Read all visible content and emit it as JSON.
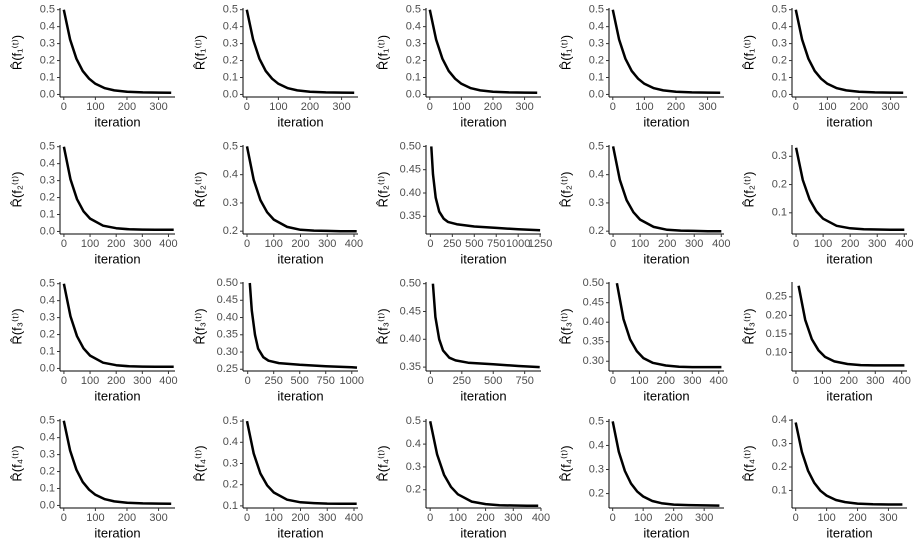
{
  "chart_data": [
    {
      "type": "line",
      "ylabel": "R̂(f₁⁽ᵗ⁾)",
      "xlabel": "iteration",
      "color": "#000000",
      "x": [
        0,
        20,
        40,
        60,
        80,
        100,
        130,
        160,
        200,
        250,
        300,
        340
      ],
      "values": [
        0.5,
        0.324,
        0.211,
        0.139,
        0.093,
        0.063,
        0.037,
        0.024,
        0.016,
        0.012,
        0.011,
        0.01
      ],
      "xlim": [
        -12,
        352
      ],
      "ylim": [
        -0.015,
        0.51
      ],
      "xticks": [
        0,
        100,
        200,
        300
      ],
      "yticks": [
        {
          "value": 0,
          "label": "0.0"
        },
        0.1,
        0.2,
        0.3,
        0.4,
        0.5
      ]
    },
    {
      "type": "line",
      "ylabel": "R̂(f₁⁽ᵗ⁾)",
      "xlabel": "iteration",
      "color": "#000000",
      "x": [
        0,
        20,
        40,
        60,
        80,
        100,
        130,
        160,
        200,
        250,
        300,
        340
      ],
      "values": [
        0.5,
        0.324,
        0.211,
        0.139,
        0.093,
        0.063,
        0.037,
        0.024,
        0.016,
        0.012,
        0.011,
        0.01
      ],
      "xlim": [
        -12,
        352
      ],
      "ylim": [
        -0.015,
        0.51
      ],
      "xticks": [
        0,
        100,
        200,
        300
      ],
      "yticks": [
        {
          "value": 0,
          "label": "0.0"
        },
        0.1,
        0.2,
        0.3,
        0.4,
        0.5
      ]
    },
    {
      "type": "line",
      "ylabel": "R̂(f₁⁽ᵗ⁾)",
      "xlabel": "iteration",
      "color": "#000000",
      "x": [
        0,
        20,
        40,
        60,
        80,
        100,
        130,
        160,
        200,
        250,
        300,
        340
      ],
      "values": [
        0.5,
        0.324,
        0.211,
        0.139,
        0.093,
        0.063,
        0.037,
        0.024,
        0.016,
        0.012,
        0.011,
        0.01
      ],
      "xlim": [
        -12,
        352
      ],
      "ylim": [
        -0.015,
        0.51
      ],
      "xticks": [
        0,
        100,
        200,
        300
      ],
      "yticks": [
        {
          "value": 0,
          "label": "0.0"
        },
        0.1,
        0.2,
        0.3,
        0.4,
        0.5
      ]
    },
    {
      "type": "line",
      "ylabel": "R̂(f₁⁽ᵗ⁾)",
      "xlabel": "iteration",
      "color": "#000000",
      "x": [
        0,
        20,
        40,
        60,
        80,
        100,
        130,
        160,
        200,
        250,
        300,
        340
      ],
      "values": [
        0.5,
        0.324,
        0.211,
        0.139,
        0.093,
        0.063,
        0.037,
        0.024,
        0.016,
        0.012,
        0.011,
        0.01
      ],
      "xlim": [
        -12,
        352
      ],
      "ylim": [
        -0.015,
        0.51
      ],
      "xticks": [
        0,
        100,
        200,
        300
      ],
      "yticks": [
        {
          "value": 0,
          "label": "0.0"
        },
        0.1,
        0.2,
        0.3,
        0.4,
        0.5
      ]
    },
    {
      "type": "line",
      "ylabel": "R̂(f₁⁽ᵗ⁾)",
      "xlabel": "iteration",
      "color": "#000000",
      "x": [
        0,
        20,
        40,
        60,
        80,
        100,
        130,
        160,
        200,
        250,
        300,
        340
      ],
      "values": [
        0.5,
        0.324,
        0.211,
        0.139,
        0.093,
        0.063,
        0.037,
        0.024,
        0.016,
        0.012,
        0.011,
        0.01
      ],
      "xlim": [
        -12,
        352
      ],
      "ylim": [
        -0.015,
        0.51
      ],
      "xticks": [
        0,
        100,
        200,
        300
      ],
      "yticks": [
        {
          "value": 0,
          "label": "0.0"
        },
        0.1,
        0.2,
        0.3,
        0.4,
        0.5
      ]
    },
    {
      "type": "line",
      "ylabel": "R̂(f₂⁽ᵗ⁾)",
      "xlabel": "iteration",
      "color": "#000000",
      "x": [
        0,
        25,
        50,
        75,
        100,
        150,
        200,
        250,
        300,
        350,
        420
      ],
      "values": [
        0.5,
        0.307,
        0.19,
        0.119,
        0.076,
        0.034,
        0.019,
        0.013,
        0.011,
        0.01,
        0.01
      ],
      "xlim": [
        -15,
        425
      ],
      "ylim": [
        -0.015,
        0.51
      ],
      "xticks": [
        0,
        100,
        200,
        300,
        400
      ],
      "yticks": [
        {
          "value": 0,
          "label": "0.0"
        },
        0.1,
        0.2,
        0.3,
        0.4,
        0.5
      ]
    },
    {
      "type": "line",
      "ylabel": "R̂(f₂⁽ᵗ⁾)",
      "xlabel": "iteration",
      "color": "#000000",
      "x": [
        0,
        25,
        50,
        75,
        100,
        150,
        200,
        250,
        300,
        350,
        410
      ],
      "values": [
        0.5,
        0.382,
        0.31,
        0.267,
        0.241,
        0.215,
        0.205,
        0.202,
        0.201,
        0.2,
        0.2
      ],
      "xlim": [
        -15,
        415
      ],
      "ylim": [
        0.19,
        0.505
      ],
      "xticks": [
        0,
        100,
        200,
        300,
        400
      ],
      "yticks": [
        0.2,
        0.3,
        0.4,
        0.5
      ]
    },
    {
      "type": "line",
      "ylabel": "R̂(f₂⁽ᵗ⁾)",
      "xlabel": "iteration",
      "color": "#000000",
      "x": [
        10,
        30,
        60,
        100,
        150,
        200,
        300,
        500,
        750,
        1000,
        1250
      ],
      "values": [
        0.5,
        0.44,
        0.39,
        0.36,
        0.345,
        0.338,
        0.333,
        0.328,
        0.325,
        0.322,
        0.32
      ],
      "xlim": [
        -50,
        1260
      ],
      "ylim": [
        0.312,
        0.503
      ],
      "xticks": [
        0,
        250,
        500,
        750,
        1000,
        1250
      ],
      "yticks": [
        0.35,
        {
          "value": 0.4,
          "label": "0.40"
        },
        0.45,
        {
          "value": 0.5,
          "label": "0.50"
        }
      ]
    },
    {
      "type": "line",
      "ylabel": "R̂(f₂⁽ᵗ⁾)",
      "xlabel": "iteration",
      "color": "#000000",
      "x": [
        0,
        25,
        50,
        75,
        100,
        150,
        200,
        250,
        300,
        350,
        400
      ],
      "values": [
        0.5,
        0.382,
        0.31,
        0.267,
        0.241,
        0.215,
        0.205,
        0.202,
        0.201,
        0.2,
        0.2
      ],
      "xlim": [
        -15,
        410
      ],
      "ylim": [
        0.19,
        0.505
      ],
      "xticks": [
        0,
        100,
        200,
        300,
        400
      ],
      "yticks": [
        0.2,
        0.3,
        0.4,
        0.5
      ]
    },
    {
      "type": "line",
      "ylabel": "R̂(f₂⁽ᵗ⁾)",
      "xlabel": "iteration",
      "color": "#000000",
      "x": [
        0,
        25,
        50,
        75,
        100,
        150,
        200,
        250,
        300,
        350,
        400
      ],
      "values": [
        0.33,
        0.216,
        0.147,
        0.105,
        0.079,
        0.054,
        0.045,
        0.042,
        0.041,
        0.04,
        0.04
      ],
      "xlim": [
        -15,
        410
      ],
      "ylim": [
        0.025,
        0.34
      ],
      "xticks": [
        0,
        100,
        200,
        300,
        400
      ],
      "yticks": [
        0.1,
        0.2,
        0.3
      ]
    },
    {
      "type": "line",
      "ylabel": "R̂(f₃⁽ᵗ⁾)",
      "xlabel": "iteration",
      "color": "#000000",
      "x": [
        0,
        25,
        50,
        75,
        100,
        150,
        200,
        250,
        300,
        350,
        420
      ],
      "values": [
        0.5,
        0.307,
        0.19,
        0.119,
        0.076,
        0.034,
        0.019,
        0.013,
        0.011,
        0.01,
        0.01
      ],
      "xlim": [
        -15,
        425
      ],
      "ylim": [
        -0.015,
        0.51
      ],
      "xticks": [
        0,
        100,
        200,
        300,
        400
      ],
      "yticks": [
        {
          "value": 0,
          "label": "0.0"
        },
        0.1,
        0.2,
        0.3,
        0.4,
        0.5
      ]
    },
    {
      "type": "line",
      "ylabel": "R̂(f₃⁽ᵗ⁾)",
      "xlabel": "iteration",
      "color": "#000000",
      "x": [
        20,
        40,
        70,
        100,
        150,
        200,
        300,
        500,
        750,
        1000,
        1050
      ],
      "values": [
        0.5,
        0.42,
        0.35,
        0.31,
        0.285,
        0.275,
        0.268,
        0.263,
        0.259,
        0.256,
        0.255
      ],
      "xlim": [
        -45,
        1060
      ],
      "ylim": [
        0.245,
        0.503
      ],
      "xticks": [
        0,
        250,
        500,
        750,
        1000
      ],
      "yticks": [
        0.25,
        {
          "value": 0.3,
          "label": "0.30"
        },
        0.35,
        {
          "value": 0.4,
          "label": "0.40"
        },
        0.45,
        {
          "value": 0.5,
          "label": "0.50"
        }
      ]
    },
    {
      "type": "line",
      "ylabel": "R̂(f₃⁽ᵗ⁾)",
      "xlabel": "iteration",
      "color": "#000000",
      "x": [
        20,
        40,
        70,
        100,
        150,
        200,
        300,
        500,
        700,
        870
      ],
      "values": [
        0.5,
        0.44,
        0.4,
        0.38,
        0.367,
        0.362,
        0.358,
        0.355,
        0.352,
        0.35
      ],
      "xlim": [
        -35,
        880
      ],
      "ylim": [
        0.343,
        0.503
      ],
      "xticks": [
        0,
        250,
        500,
        750
      ],
      "yticks": [
        0.35,
        {
          "value": 0.4,
          "label": "0.40"
        },
        0.45,
        {
          "value": 0.5,
          "label": "0.50"
        }
      ]
    },
    {
      "type": "line",
      "ylabel": "R̂(f₃⁽ᵗ⁾)",
      "xlabel": "iteration",
      "color": "#000000",
      "x": [
        15,
        40,
        65,
        90,
        115,
        150,
        200,
        250,
        300,
        350,
        410
      ],
      "values": [
        0.5,
        0.408,
        0.356,
        0.326,
        0.308,
        0.296,
        0.289,
        0.286,
        0.285,
        0.285,
        0.285
      ],
      "xlim": [
        -15,
        420
      ],
      "ylim": [
        0.275,
        0.503
      ],
      "xticks": [
        0,
        100,
        200,
        300,
        400
      ],
      "yticks": [
        {
          "value": 0.3,
          "label": "0.30"
        },
        0.35,
        {
          "value": 0.4,
          "label": "0.40"
        },
        0.45,
        {
          "value": 0.5,
          "label": "0.50"
        }
      ]
    },
    {
      "type": "line",
      "ylabel": "R̂(f₃⁽ᵗ⁾)",
      "xlabel": "iteration",
      "color": "#000000",
      "x": [
        10,
        35,
        60,
        85,
        110,
        145,
        195,
        245,
        295,
        345,
        410
      ],
      "values": [
        0.28,
        0.188,
        0.136,
        0.106,
        0.088,
        0.076,
        0.069,
        0.066,
        0.065,
        0.065,
        0.065
      ],
      "xlim": [
        -15,
        420
      ],
      "ylim": [
        0.05,
        0.29
      ],
      "xticks": [
        0,
        100,
        200,
        300,
        400
      ],
      "yticks": [
        {
          "value": 0.1,
          "label": "0.10"
        },
        0.15,
        {
          "value": 0.2,
          "label": "0.20"
        },
        0.25
      ]
    },
    {
      "type": "line",
      "ylabel": "R̂(f₄⁽ᵗ⁾)",
      "xlabel": "iteration",
      "color": "#000000",
      "x": [
        0,
        20,
        40,
        60,
        80,
        100,
        130,
        160,
        200,
        250,
        300,
        340
      ],
      "values": [
        0.5,
        0.324,
        0.211,
        0.139,
        0.093,
        0.063,
        0.037,
        0.024,
        0.016,
        0.012,
        0.011,
        0.01
      ],
      "xlim": [
        -12,
        352
      ],
      "ylim": [
        -0.015,
        0.51
      ],
      "xticks": [
        0,
        100,
        200,
        300
      ],
      "yticks": [
        {
          "value": 0,
          "label": "0.0"
        },
        0.1,
        0.2,
        0.3,
        0.4,
        0.5
      ]
    },
    {
      "type": "line",
      "ylabel": "R̂(f₄⁽ᵗ⁾)",
      "xlabel": "iteration",
      "color": "#000000",
      "x": [
        0,
        25,
        50,
        75,
        100,
        150,
        200,
        250,
        300,
        350,
        410
      ],
      "values": [
        0.5,
        0.347,
        0.253,
        0.197,
        0.163,
        0.129,
        0.117,
        0.113,
        0.111,
        0.11,
        0.11
      ],
      "xlim": [
        -15,
        415
      ],
      "ylim": [
        0.09,
        0.51
      ],
      "xticks": [
        0,
        100,
        200,
        300,
        400
      ],
      "yticks": [
        0.1,
        0.2,
        0.3,
        0.4,
        0.5
      ]
    },
    {
      "type": "line",
      "ylabel": "R̂(f₄⁽ᵗ⁾)",
      "xlabel": "iteration",
      "color": "#000000",
      "x": [
        0,
        25,
        50,
        75,
        100,
        150,
        200,
        250,
        300,
        350,
        390
      ],
      "values": [
        0.5,
        0.355,
        0.266,
        0.213,
        0.18,
        0.148,
        0.137,
        0.132,
        0.131,
        0.13,
        0.13
      ],
      "xlim": [
        -15,
        400
      ],
      "ylim": [
        0.12,
        0.51
      ],
      "xticks": [
        0,
        100,
        200,
        300,
        400
      ],
      "yticks": [
        0.2,
        0.3,
        0.4,
        0.5
      ]
    },
    {
      "type": "line",
      "ylabel": "R̂(f₄⁽ᵗ⁾)",
      "xlabel": "iteration",
      "color": "#000000",
      "x": [
        0,
        20,
        40,
        60,
        80,
        100,
        130,
        160,
        200,
        250,
        300,
        350
      ],
      "values": [
        0.5,
        0.374,
        0.294,
        0.242,
        0.209,
        0.188,
        0.169,
        0.16,
        0.154,
        0.152,
        0.151,
        0.15
      ],
      "xlim": [
        -12,
        365
      ],
      "ylim": [
        0.14,
        0.51
      ],
      "xticks": [
        0,
        100,
        200,
        300
      ],
      "yticks": [
        0.2,
        0.3,
        0.4,
        0.5
      ]
    },
    {
      "type": "line",
      "ylabel": "R̂(f₄⁽ᵗ⁾)",
      "xlabel": "iteration",
      "color": "#000000",
      "x": [
        0,
        20,
        40,
        60,
        80,
        100,
        130,
        160,
        200,
        250,
        300,
        345
      ],
      "values": [
        0.39,
        0.264,
        0.184,
        0.132,
        0.099,
        0.078,
        0.059,
        0.05,
        0.044,
        0.041,
        0.04,
        0.04
      ],
      "xlim": [
        -12,
        360
      ],
      "ylim": [
        0.025,
        0.405
      ],
      "xticks": [
        0,
        100,
        200,
        300
      ],
      "yticks": [
        0.1,
        0.2,
        0.3,
        0.4
      ]
    }
  ]
}
